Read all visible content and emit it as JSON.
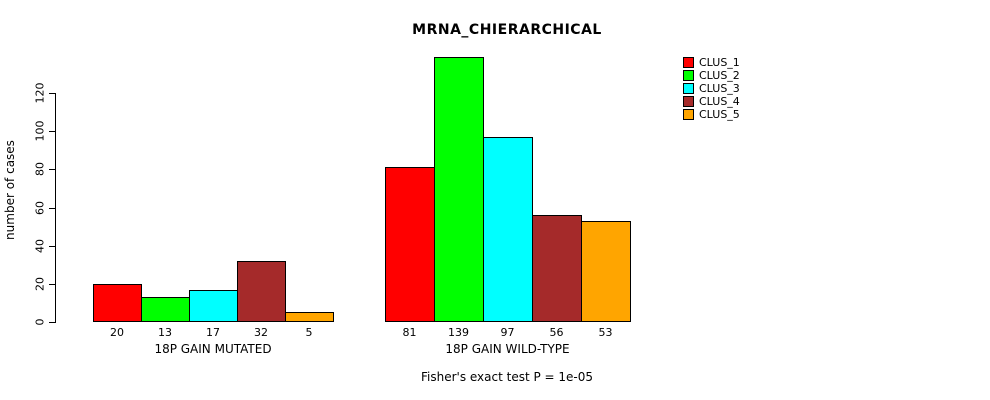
{
  "chart_data": {
    "type": "bar",
    "title": "MRNA_CHIERARCHICAL",
    "ylabel": "number of cases",
    "subtitle": "Fisher's exact test P = 1e-05",
    "ylim": [
      0,
      140
    ],
    "yticks": [
      0,
      20,
      40,
      60,
      80,
      100,
      120
    ],
    "grid": false,
    "legend_position": "top-right",
    "categories": [
      "18P GAIN MUTATED",
      "18P GAIN WILD-TYPE"
    ],
    "groups": [
      {
        "label": "18P GAIN MUTATED",
        "values": [
          20,
          13,
          17,
          32,
          5
        ]
      },
      {
        "label": "18P GAIN WILD-TYPE",
        "values": [
          81,
          139,
          97,
          56,
          53
        ]
      }
    ],
    "series": [
      {
        "name": "CLUS_1",
        "color": "#ff0000"
      },
      {
        "name": "CLUS_2",
        "color": "#00ff00"
      },
      {
        "name": "CLUS_3",
        "color": "#00ffff"
      },
      {
        "name": "CLUS_4",
        "color": "#a52a2a"
      },
      {
        "name": "CLUS_5",
        "color": "#ffa500"
      }
    ]
  }
}
